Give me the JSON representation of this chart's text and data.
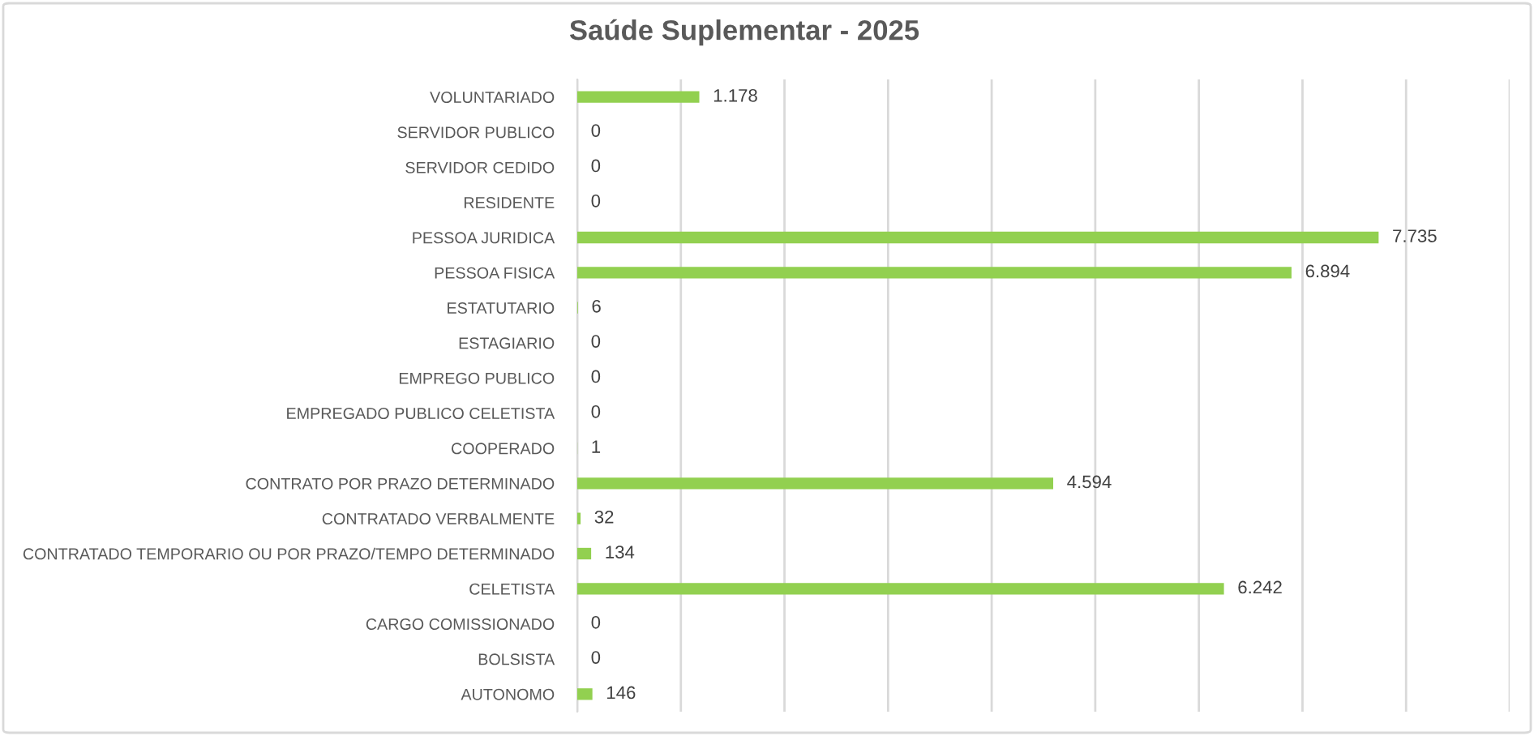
{
  "chart_data": {
    "type": "bar",
    "orientation": "horizontal",
    "title": "Saúde Suplementar - 2025",
    "categories": [
      "VOLUNTARIADO",
      "SERVIDOR PUBLICO",
      "SERVIDOR CEDIDO",
      "RESIDENTE",
      "PESSOA JURIDICA",
      "PESSOA FISICA",
      "ESTATUTARIO",
      "ESTAGIARIO",
      "EMPREGO PUBLICO",
      "EMPREGADO PUBLICO CELETISTA",
      "COOPERADO",
      "CONTRATO POR PRAZO DETERMINADO",
      "CONTRATADO VERBALMENTE",
      "CONTRATADO TEMPORARIO OU POR PRAZO/TEMPO DETERMINADO",
      "CELETISTA",
      "CARGO COMISSIONADO",
      "BOLSISTA",
      "AUTONOMO"
    ],
    "values": [
      1178,
      0,
      0,
      0,
      7735,
      6894,
      6,
      0,
      0,
      0,
      1,
      4594,
      32,
      134,
      6242,
      0,
      0,
      146
    ],
    "value_labels": [
      "1.178",
      "0",
      "0",
      "0",
      "7.735",
      "6.894",
      "6",
      "0",
      "0",
      "0",
      "1",
      "4.594",
      "32",
      "134",
      "6.242",
      "0",
      "0",
      "146"
    ],
    "color": "#92d050",
    "xlim": [
      0,
      9000
    ],
    "xticks": [
      {
        "value": 0,
        "label": null
      },
      {
        "value": 1000,
        "label": null
      },
      {
        "value": 2000,
        "label": null
      },
      {
        "value": 3000,
        "label": null
      },
      {
        "value": 4000,
        "label": null
      },
      {
        "value": 5000,
        "label": null
      },
      {
        "value": 6000,
        "label": null
      },
      {
        "value": 7000,
        "label": null
      },
      {
        "value": 8000,
        "label": null
      },
      {
        "value": 9000,
        "label": null
      }
    ],
    "tick_labels": "y",
    "grid": "x"
  }
}
